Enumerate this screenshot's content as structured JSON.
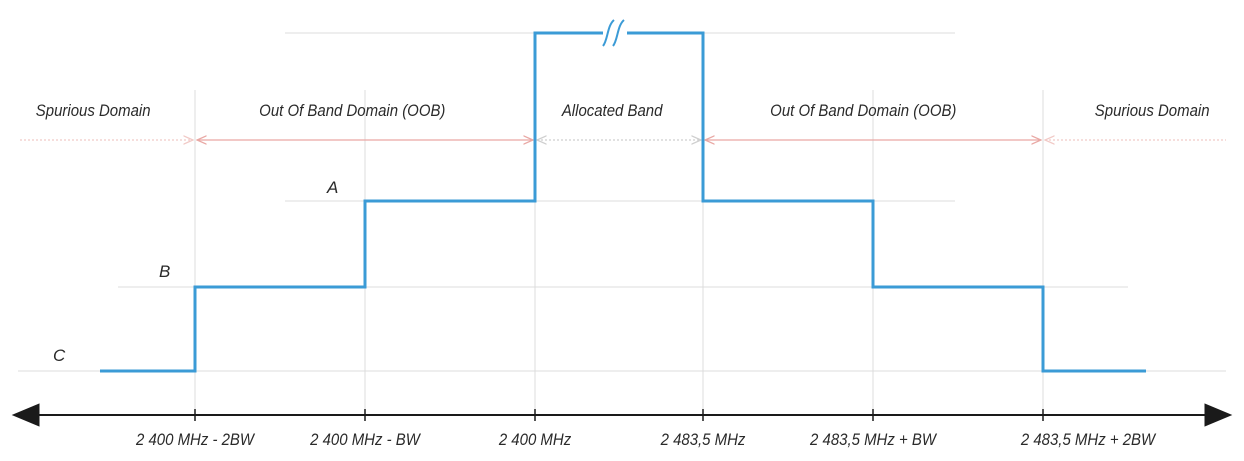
{
  "domains": [
    {
      "id": "spurious-left",
      "label": "Spurious Domain"
    },
    {
      "id": "oob-left",
      "label": "Out Of Band Domain (OOB)"
    },
    {
      "id": "allocated",
      "label": "Allocated Band"
    },
    {
      "id": "oob-right",
      "label": "Out Of Band Domain (OOB)"
    },
    {
      "id": "spurious-right",
      "label": "Spurious Domain"
    }
  ],
  "levels": {
    "A": "A",
    "B": "B",
    "C": "C"
  },
  "ticks": [
    "2 400 MHz - 2BW",
    "2 400 MHz - BW",
    "2 400 MHz",
    "2 483,5 MHz",
    "2 483,5 MHz + BW",
    "2 483,5 MHz + 2BW"
  ],
  "colors": {
    "mask_line": "#3b9bd6",
    "oob_arrow": "#e9a8a4",
    "spurious_arrow": "#f1c9c6",
    "allocated_arrow": "#d8d8d8",
    "guide_line": "#d9d9d9",
    "axis": "#1a1a1a"
  },
  "break_symbol": "double-slash-break-icon"
}
